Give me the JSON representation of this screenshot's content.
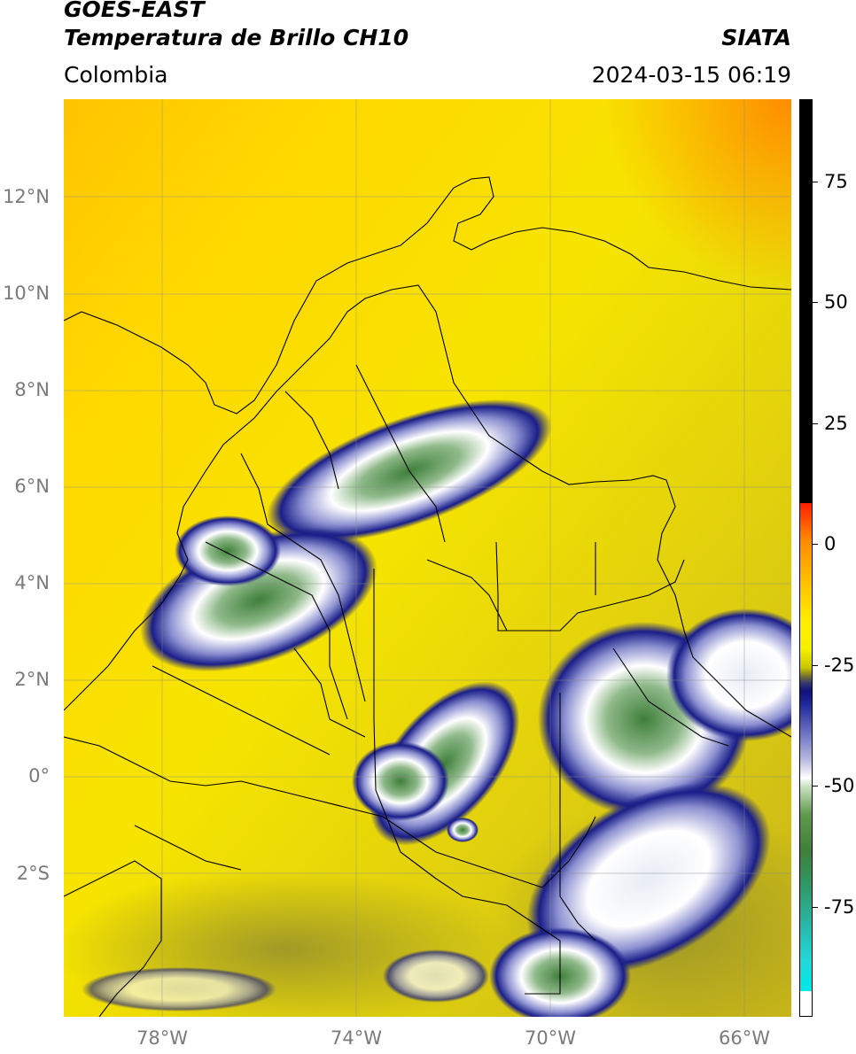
{
  "header": {
    "satellite": "GOES-EAST",
    "product": "Temperatura de Brillo CH10",
    "brand": "SIATA",
    "region": "Colombia",
    "datetime": "2024-03-15 06:19"
  },
  "map": {
    "lat_labels": [
      "12°N",
      "10°N",
      "8°N",
      "6°N",
      "4°N",
      "2°N",
      "0°",
      "2°S"
    ],
    "lon_labels": [
      "78°W",
      "74°W",
      "70°W",
      "66°W"
    ],
    "background_color": "#f3d400",
    "border_color": "#000000",
    "grid": true
  },
  "colorbar": {
    "ticks": [
      "75",
      "50",
      "25",
      "0",
      "-25",
      "-50",
      "-75"
    ],
    "colors": {
      "warm": "#000000",
      "red": "#ff1e00",
      "orange": "#ff8a00",
      "yellow": "#ffef00",
      "olive": "#8e8a2e",
      "navy": "#10127a",
      "white": "#ffffff",
      "green": "#3f7f3a",
      "cyan": "#00e8e8"
    }
  }
}
